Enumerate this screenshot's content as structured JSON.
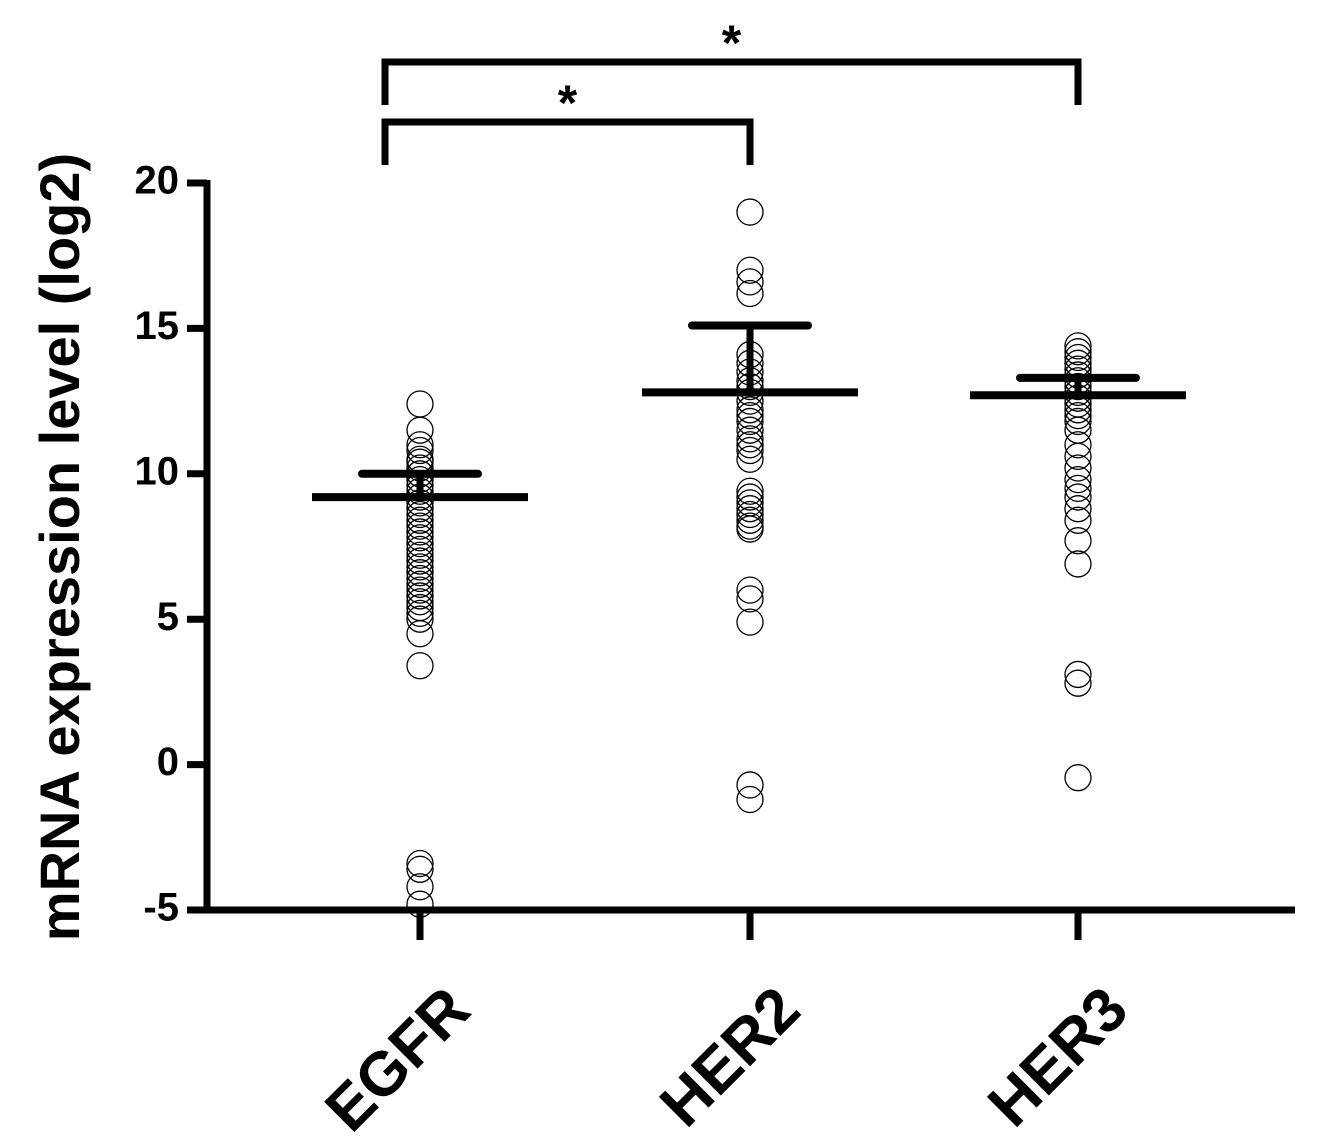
{
  "chart_data": {
    "type": "dot",
    "y_label": "mRNA expression level (log2)",
    "categories": [
      "EGFR",
      "HER2",
      "HER3"
    ],
    "points": [
      [
        12.4,
        11.5,
        11.0,
        10.8,
        10.5,
        10.4,
        10.2,
        10.0,
        9.8,
        9.6,
        9.4,
        9.2,
        9.0,
        8.8,
        8.6,
        8.4,
        8.2,
        8.0,
        7.8,
        7.6,
        7.4,
        7.2,
        7.0,
        6.8,
        6.6,
        6.4,
        6.2,
        6.0,
        5.8,
        5.6,
        5.4,
        5.2,
        5.0,
        4.5,
        3.4,
        -3.4,
        -3.6,
        -4.2,
        -4.8
      ],
      [
        19.0,
        17.0,
        16.6,
        16.2,
        14.1,
        13.8,
        13.5,
        13.2,
        13.0,
        12.8,
        12.5,
        12.2,
        12.0,
        11.8,
        11.5,
        11.2,
        11.0,
        10.8,
        10.5,
        9.4,
        9.2,
        9.0,
        8.8,
        8.6,
        8.4,
        8.2,
        8.1,
        6.0,
        5.7,
        4.9,
        -0.7,
        -1.2
      ],
      [
        14.4,
        14.2,
        14.0,
        13.8,
        13.6,
        13.4,
        13.2,
        13.0,
        12.8,
        12.6,
        12.4,
        12.2,
        12.0,
        11.8,
        11.5,
        11.0,
        10.6,
        10.2,
        9.8,
        9.5,
        9.2,
        8.8,
        8.4,
        7.7,
        6.9,
        3.1,
        2.8,
        -0.45
      ]
    ],
    "means": [
      9.2,
      12.8,
      12.7
    ],
    "errors": [
      0.8,
      2.3,
      0.6
    ],
    "ylim": [
      -5,
      20
    ],
    "yticks": [
      20,
      15,
      10,
      5,
      0,
      -5
    ],
    "color": "#000000",
    "annotations": [
      {
        "label": "*",
        "categories": [
          0,
          1
        ]
      },
      {
        "label": "*",
        "categories": [
          0,
          2
        ]
      }
    ]
  }
}
